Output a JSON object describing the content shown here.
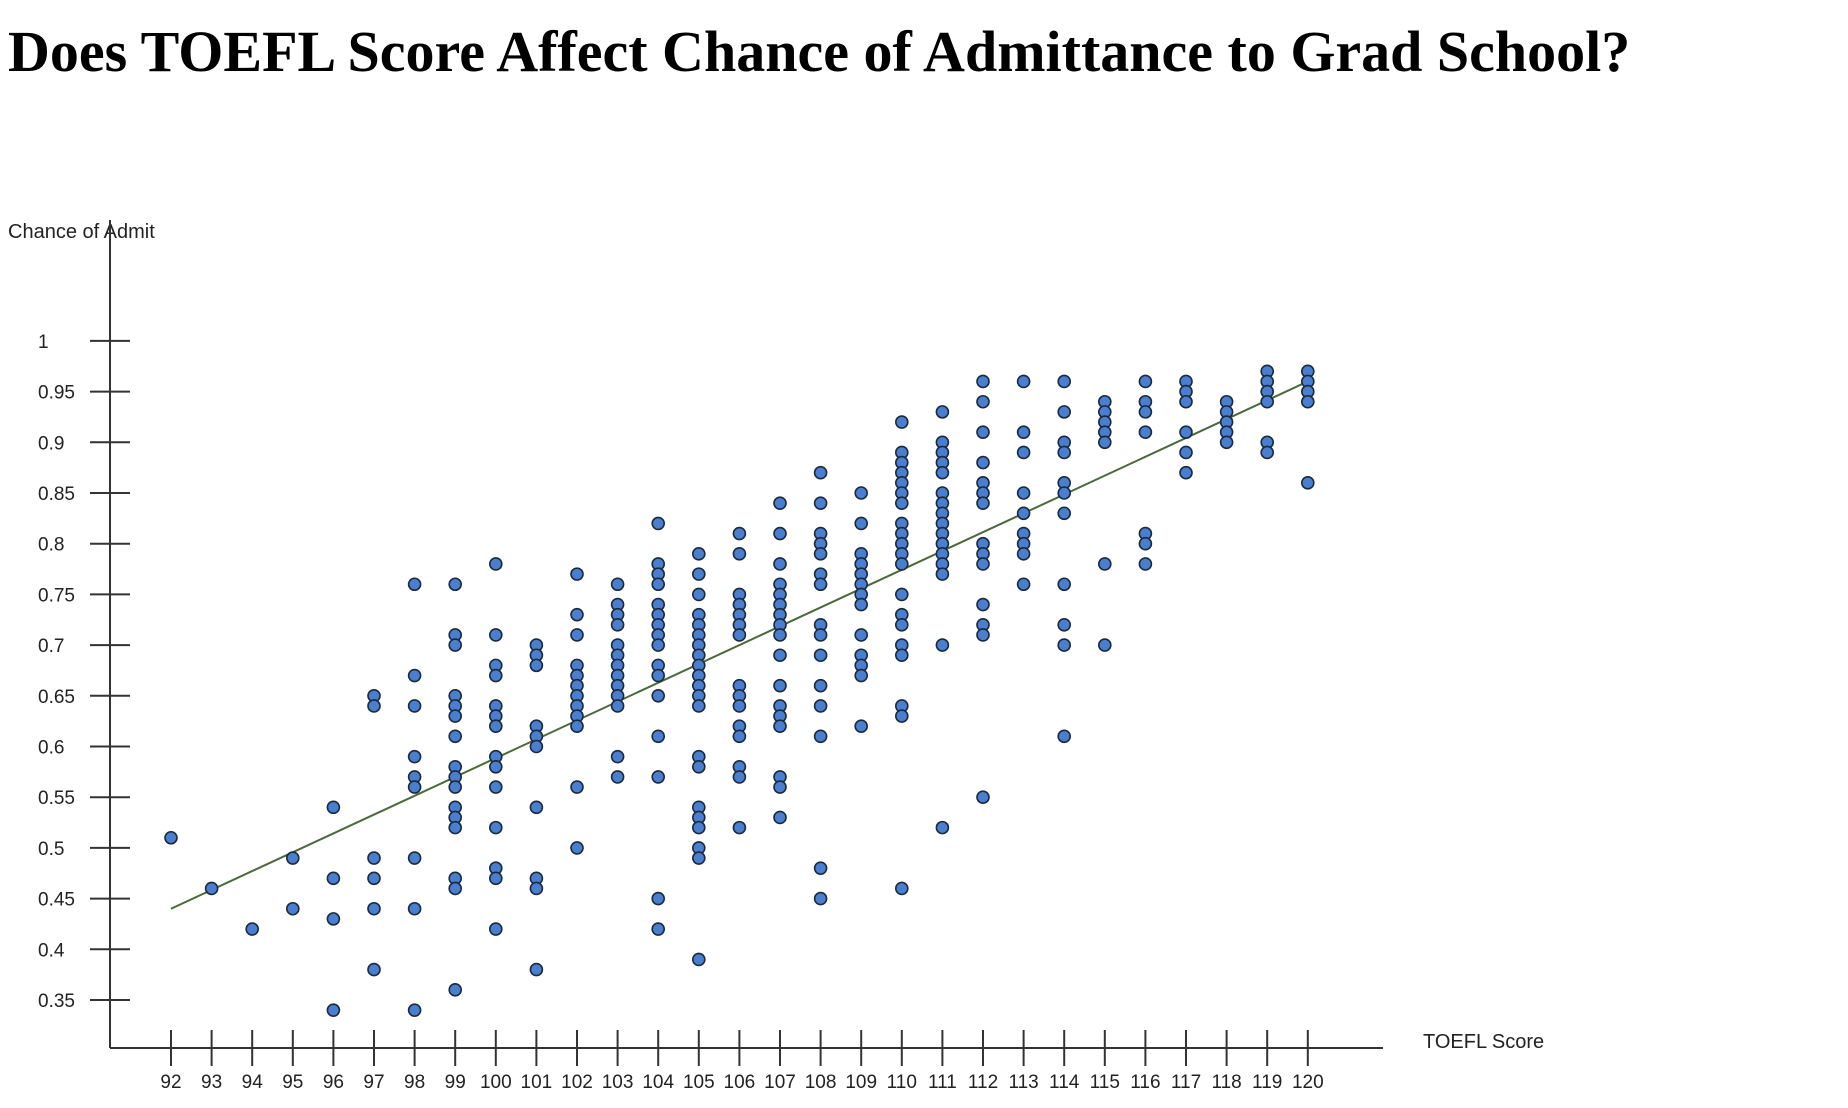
{
  "title": "Does TOEFL Score Affect Chance of Admittance to Grad School?",
  "chart_data": {
    "type": "scatter",
    "title": "Does TOEFL Score Affect Chance of Admittance to Grad School?",
    "xlabel": "TOEFL Score",
    "ylabel": "Chance of Admit",
    "xlim": [
      92,
      120
    ],
    "ylim": [
      0.3,
      1.0
    ],
    "x_ticks": [
      "92",
      "93",
      "94",
      "95",
      "96",
      "97",
      "98",
      "99",
      "100",
      "101",
      "102",
      "103",
      "104",
      "105",
      "106",
      "107",
      "108",
      "109",
      "110",
      "111",
      "112",
      "113",
      "114",
      "115",
      "116",
      "117",
      "118",
      "119",
      "120"
    ],
    "y_ticks": [
      "0.35",
      "0.4",
      "0.45",
      "0.5",
      "0.55",
      "0.6",
      "0.65",
      "0.7",
      "0.75",
      "0.8",
      "0.85",
      "0.9",
      "0.95",
      "1"
    ],
    "point_color": "#4a7fcf",
    "point_stroke": "#1b2a3d",
    "trendline": {
      "x": [
        92,
        120
      ],
      "y": [
        0.44,
        0.96
      ],
      "color": "#4a6a3c"
    },
    "grid": false,
    "points": [
      [
        92,
        0.51
      ],
      [
        93,
        0.46
      ],
      [
        94,
        0.42
      ],
      [
        95,
        0.49
      ],
      [
        95,
        0.44
      ],
      [
        96,
        0.54
      ],
      [
        96,
        0.47
      ],
      [
        96,
        0.43
      ],
      [
        96,
        0.34
      ],
      [
        97,
        0.65
      ],
      [
        97,
        0.64
      ],
      [
        97,
        0.49
      ],
      [
        97,
        0.47
      ],
      [
        97,
        0.44
      ],
      [
        97,
        0.38
      ],
      [
        98,
        0.76
      ],
      [
        98,
        0.67
      ],
      [
        98,
        0.64
      ],
      [
        98,
        0.59
      ],
      [
        98,
        0.57
      ],
      [
        98,
        0.56
      ],
      [
        98,
        0.49
      ],
      [
        98,
        0.44
      ],
      [
        98,
        0.34
      ],
      [
        99,
        0.76
      ],
      [
        99,
        0.71
      ],
      [
        99,
        0.7
      ],
      [
        99,
        0.65
      ],
      [
        99,
        0.64
      ],
      [
        99,
        0.63
      ],
      [
        99,
        0.61
      ],
      [
        99,
        0.58
      ],
      [
        99,
        0.57
      ],
      [
        99,
        0.56
      ],
      [
        99,
        0.54
      ],
      [
        99,
        0.53
      ],
      [
        99,
        0.52
      ],
      [
        99,
        0.47
      ],
      [
        99,
        0.46
      ],
      [
        99,
        0.36
      ],
      [
        100,
        0.78
      ],
      [
        100,
        0.71
      ],
      [
        100,
        0.68
      ],
      [
        100,
        0.67
      ],
      [
        100,
        0.64
      ],
      [
        100,
        0.63
      ],
      [
        100,
        0.62
      ],
      [
        100,
        0.59
      ],
      [
        100,
        0.58
      ],
      [
        100,
        0.56
      ],
      [
        100,
        0.52
      ],
      [
        100,
        0.48
      ],
      [
        100,
        0.47
      ],
      [
        100,
        0.42
      ],
      [
        101,
        0.7
      ],
      [
        101,
        0.69
      ],
      [
        101,
        0.68
      ],
      [
        101,
        0.62
      ],
      [
        101,
        0.61
      ],
      [
        101,
        0.6
      ],
      [
        101,
        0.54
      ],
      [
        101,
        0.47
      ],
      [
        101,
        0.46
      ],
      [
        101,
        0.38
      ],
      [
        102,
        0.77
      ],
      [
        102,
        0.73
      ],
      [
        102,
        0.71
      ],
      [
        102,
        0.68
      ],
      [
        102,
        0.67
      ],
      [
        102,
        0.66
      ],
      [
        102,
        0.65
      ],
      [
        102,
        0.64
      ],
      [
        102,
        0.63
      ],
      [
        102,
        0.62
      ],
      [
        102,
        0.56
      ],
      [
        102,
        0.5
      ],
      [
        103,
        0.76
      ],
      [
        103,
        0.74
      ],
      [
        103,
        0.73
      ],
      [
        103,
        0.72
      ],
      [
        103,
        0.7
      ],
      [
        103,
        0.69
      ],
      [
        103,
        0.68
      ],
      [
        103,
        0.67
      ],
      [
        103,
        0.66
      ],
      [
        103,
        0.65
      ],
      [
        103,
        0.64
      ],
      [
        103,
        0.59
      ],
      [
        103,
        0.57
      ],
      [
        104,
        0.82
      ],
      [
        104,
        0.78
      ],
      [
        104,
        0.77
      ],
      [
        104,
        0.76
      ],
      [
        104,
        0.74
      ],
      [
        104,
        0.73
      ],
      [
        104,
        0.72
      ],
      [
        104,
        0.71
      ],
      [
        104,
        0.7
      ],
      [
        104,
        0.68
      ],
      [
        104,
        0.67
      ],
      [
        104,
        0.65
      ],
      [
        104,
        0.61
      ],
      [
        104,
        0.57
      ],
      [
        104,
        0.45
      ],
      [
        104,
        0.42
      ],
      [
        105,
        0.79
      ],
      [
        105,
        0.77
      ],
      [
        105,
        0.75
      ],
      [
        105,
        0.73
      ],
      [
        105,
        0.72
      ],
      [
        105,
        0.71
      ],
      [
        105,
        0.7
      ],
      [
        105,
        0.69
      ],
      [
        105,
        0.68
      ],
      [
        105,
        0.67
      ],
      [
        105,
        0.66
      ],
      [
        105,
        0.65
      ],
      [
        105,
        0.64
      ],
      [
        105,
        0.59
      ],
      [
        105,
        0.58
      ],
      [
        105,
        0.54
      ],
      [
        105,
        0.53
      ],
      [
        105,
        0.52
      ],
      [
        105,
        0.5
      ],
      [
        105,
        0.49
      ],
      [
        105,
        0.39
      ],
      [
        106,
        0.81
      ],
      [
        106,
        0.79
      ],
      [
        106,
        0.75
      ],
      [
        106,
        0.74
      ],
      [
        106,
        0.73
      ],
      [
        106,
        0.72
      ],
      [
        106,
        0.71
      ],
      [
        106,
        0.66
      ],
      [
        106,
        0.65
      ],
      [
        106,
        0.64
      ],
      [
        106,
        0.62
      ],
      [
        106,
        0.61
      ],
      [
        106,
        0.58
      ],
      [
        106,
        0.57
      ],
      [
        106,
        0.52
      ],
      [
        107,
        0.84
      ],
      [
        107,
        0.81
      ],
      [
        107,
        0.78
      ],
      [
        107,
        0.76
      ],
      [
        107,
        0.75
      ],
      [
        107,
        0.74
      ],
      [
        107,
        0.73
      ],
      [
        107,
        0.72
      ],
      [
        107,
        0.71
      ],
      [
        107,
        0.69
      ],
      [
        107,
        0.66
      ],
      [
        107,
        0.64
      ],
      [
        107,
        0.63
      ],
      [
        107,
        0.62
      ],
      [
        107,
        0.57
      ],
      [
        107,
        0.56
      ],
      [
        107,
        0.53
      ],
      [
        108,
        0.87
      ],
      [
        108,
        0.84
      ],
      [
        108,
        0.81
      ],
      [
        108,
        0.8
      ],
      [
        108,
        0.79
      ],
      [
        108,
        0.77
      ],
      [
        108,
        0.76
      ],
      [
        108,
        0.72
      ],
      [
        108,
        0.71
      ],
      [
        108,
        0.69
      ],
      [
        108,
        0.66
      ],
      [
        108,
        0.64
      ],
      [
        108,
        0.61
      ],
      [
        108,
        0.48
      ],
      [
        108,
        0.45
      ],
      [
        109,
        0.85
      ],
      [
        109,
        0.82
      ],
      [
        109,
        0.79
      ],
      [
        109,
        0.78
      ],
      [
        109,
        0.77
      ],
      [
        109,
        0.76
      ],
      [
        109,
        0.75
      ],
      [
        109,
        0.74
      ],
      [
        109,
        0.71
      ],
      [
        109,
        0.69
      ],
      [
        109,
        0.68
      ],
      [
        109,
        0.67
      ],
      [
        109,
        0.62
      ],
      [
        110,
        0.92
      ],
      [
        110,
        0.89
      ],
      [
        110,
        0.88
      ],
      [
        110,
        0.87
      ],
      [
        110,
        0.86
      ],
      [
        110,
        0.85
      ],
      [
        110,
        0.84
      ],
      [
        110,
        0.82
      ],
      [
        110,
        0.81
      ],
      [
        110,
        0.8
      ],
      [
        110,
        0.79
      ],
      [
        110,
        0.78
      ],
      [
        110,
        0.75
      ],
      [
        110,
        0.73
      ],
      [
        110,
        0.72
      ],
      [
        110,
        0.7
      ],
      [
        110,
        0.69
      ],
      [
        110,
        0.64
      ],
      [
        110,
        0.63
      ],
      [
        110,
        0.46
      ],
      [
        111,
        0.93
      ],
      [
        111,
        0.9
      ],
      [
        111,
        0.89
      ],
      [
        111,
        0.88
      ],
      [
        111,
        0.87
      ],
      [
        111,
        0.85
      ],
      [
        111,
        0.84
      ],
      [
        111,
        0.83
      ],
      [
        111,
        0.82
      ],
      [
        111,
        0.81
      ],
      [
        111,
        0.8
      ],
      [
        111,
        0.79
      ],
      [
        111,
        0.78
      ],
      [
        111,
        0.77
      ],
      [
        111,
        0.7
      ],
      [
        111,
        0.52
      ],
      [
        112,
        0.96
      ],
      [
        112,
        0.94
      ],
      [
        112,
        0.91
      ],
      [
        112,
        0.88
      ],
      [
        112,
        0.86
      ],
      [
        112,
        0.85
      ],
      [
        112,
        0.84
      ],
      [
        112,
        0.8
      ],
      [
        112,
        0.79
      ],
      [
        112,
        0.78
      ],
      [
        112,
        0.74
      ],
      [
        112,
        0.72
      ],
      [
        112,
        0.71
      ],
      [
        112,
        0.55
      ],
      [
        113,
        0.96
      ],
      [
        113,
        0.91
      ],
      [
        113,
        0.89
      ],
      [
        113,
        0.85
      ],
      [
        113,
        0.83
      ],
      [
        113,
        0.81
      ],
      [
        113,
        0.8
      ],
      [
        113,
        0.79
      ],
      [
        113,
        0.76
      ],
      [
        114,
        0.96
      ],
      [
        114,
        0.93
      ],
      [
        114,
        0.9
      ],
      [
        114,
        0.89
      ],
      [
        114,
        0.86
      ],
      [
        114,
        0.85
      ],
      [
        114,
        0.83
      ],
      [
        114,
        0.76
      ],
      [
        114,
        0.72
      ],
      [
        114,
        0.7
      ],
      [
        114,
        0.61
      ],
      [
        115,
        0.94
      ],
      [
        115,
        0.93
      ],
      [
        115,
        0.92
      ],
      [
        115,
        0.91
      ],
      [
        115,
        0.9
      ],
      [
        115,
        0.78
      ],
      [
        115,
        0.7
      ],
      [
        116,
        0.96
      ],
      [
        116,
        0.94
      ],
      [
        116,
        0.93
      ],
      [
        116,
        0.91
      ],
      [
        116,
        0.81
      ],
      [
        116,
        0.8
      ],
      [
        116,
        0.78
      ],
      [
        117,
        0.96
      ],
      [
        117,
        0.95
      ],
      [
        117,
        0.94
      ],
      [
        117,
        0.91
      ],
      [
        117,
        0.89
      ],
      [
        117,
        0.87
      ],
      [
        118,
        0.94
      ],
      [
        118,
        0.93
      ],
      [
        118,
        0.92
      ],
      [
        118,
        0.91
      ],
      [
        118,
        0.9
      ],
      [
        119,
        0.97
      ],
      [
        119,
        0.96
      ],
      [
        119,
        0.95
      ],
      [
        119,
        0.94
      ],
      [
        119,
        0.9
      ],
      [
        119,
        0.89
      ],
      [
        120,
        0.97
      ],
      [
        120,
        0.96
      ],
      [
        120,
        0.95
      ],
      [
        120,
        0.94
      ],
      [
        120,
        0.86
      ]
    ]
  }
}
